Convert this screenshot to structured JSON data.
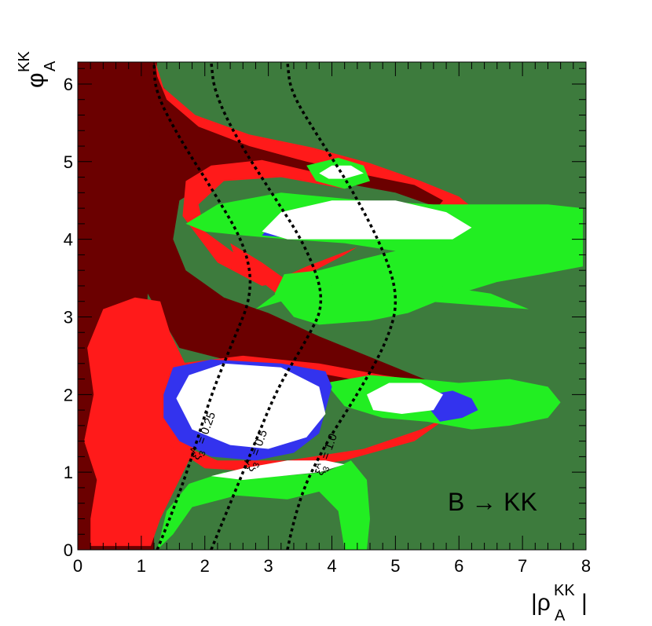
{
  "chart_data": {
    "type": "heatmap",
    "title": "",
    "xlabel": "|ρ",
    "xlabel_superscript": "KK",
    "xlabel_subscript": "A",
    "xlabel_suffix": "|",
    "ylabel": "φ",
    "ylabel_superscript": "KK",
    "ylabel_subscript": "A",
    "xlim": [
      0,
      8
    ],
    "ylim": [
      0,
      6.283
    ],
    "x_ticks": [
      0,
      1,
      2,
      3,
      4,
      5,
      6,
      7,
      8
    ],
    "x_tick_labels": [
      "0",
      "1",
      "2",
      "3",
      "4",
      "5",
      "6",
      "7",
      "8"
    ],
    "y_ticks": [
      0,
      1,
      2,
      3,
      4,
      5,
      6
    ],
    "y_tick_labels": [
      "0",
      "1",
      "2",
      "3",
      "4",
      "5",
      "6"
    ],
    "grid": false,
    "annotation": "B → KK",
    "colors": {
      "background": "#3d7b3d",
      "dark_red": "#6b0000",
      "red": "#ff1a1a",
      "green": "#22ee22",
      "blue": "#3333ee",
      "white": "#ffffff",
      "contour": "#000000"
    },
    "contours": [
      {
        "label_prefix": "ξ",
        "label_superscript": "A",
        "label_subscript": "3",
        "label_value": "= 0.25",
        "points": [
          [
            1.25,
            0
          ],
          [
            1.5,
            0.5
          ],
          [
            1.8,
            1.2
          ],
          [
            2.1,
            2.0
          ],
          [
            2.45,
            2.7
          ],
          [
            2.75,
            3.3
          ],
          [
            2.65,
            3.9
          ],
          [
            2.15,
            4.6
          ],
          [
            1.6,
            5.3
          ],
          [
            1.22,
            5.9
          ],
          [
            1.2,
            6.283
          ]
        ]
      },
      {
        "label_prefix": "ξ",
        "label_superscript": "A",
        "label_subscript": "3",
        "label_value": "= 0.5",
        "points": [
          [
            2.1,
            0
          ],
          [
            2.4,
            0.6
          ],
          [
            2.75,
            1.3
          ],
          [
            3.15,
            2.1
          ],
          [
            3.6,
            2.7
          ],
          [
            3.9,
            3.2
          ],
          [
            3.6,
            3.9
          ],
          [
            3.05,
            4.6
          ],
          [
            2.5,
            5.3
          ],
          [
            2.15,
            5.9
          ],
          [
            2.1,
            6.283
          ]
        ]
      },
      {
        "label_prefix": "ξ",
        "label_superscript": "A",
        "label_subscript": "3",
        "label_value": "= 1.0",
        "points": [
          [
            3.3,
            0
          ],
          [
            3.45,
            0.6
          ],
          [
            3.85,
            1.3
          ],
          [
            4.4,
            2.0
          ],
          [
            4.85,
            2.65
          ],
          [
            5.05,
            3.2
          ],
          [
            4.85,
            3.8
          ],
          [
            4.35,
            4.6
          ],
          [
            3.8,
            5.3
          ],
          [
            3.35,
            5.9
          ],
          [
            3.3,
            6.283
          ]
        ]
      }
    ]
  }
}
